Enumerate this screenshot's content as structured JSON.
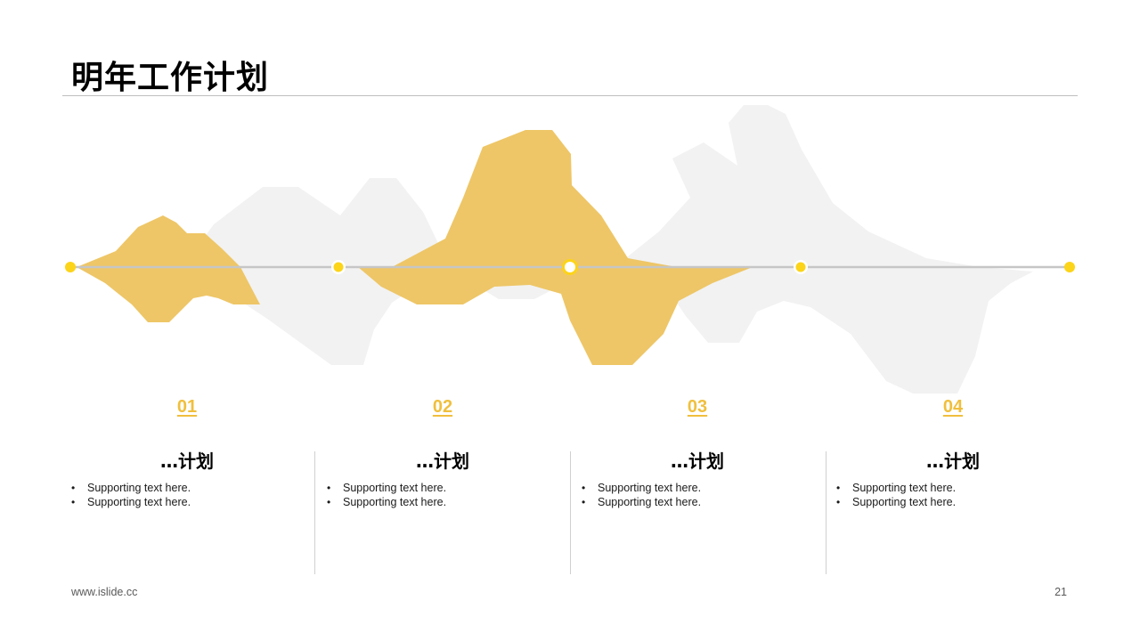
{
  "title": "明年工作计划",
  "colors": {
    "accent": "#f0bf3d",
    "wave_yellow": "#eec667",
    "wave_gray": "#f2f2f2",
    "dot": "#fcd419",
    "axis": "#c6c6c6"
  },
  "steps": [
    {
      "number": "01",
      "heading": "…计划",
      "bullets": [
        "Supporting text here.",
        "Supporting text here."
      ]
    },
    {
      "number": "02",
      "heading": "…计划",
      "bullets": [
        "Supporting text here.",
        "Supporting text here."
      ]
    },
    {
      "number": "03",
      "heading": "…计划",
      "bullets": [
        "Supporting text here.",
        "Supporting text here."
      ]
    },
    {
      "number": "04",
      "heading": "…计划",
      "bullets": [
        "Supporting text here.",
        "Supporting text here."
      ]
    }
  ],
  "footer": {
    "url": "www.islide.cc",
    "page": "21"
  }
}
